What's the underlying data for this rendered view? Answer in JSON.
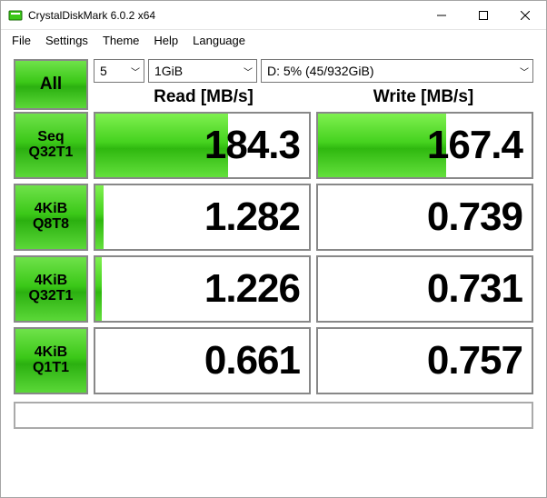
{
  "window": {
    "title": "CrystalDiskMark 6.0.2 x64"
  },
  "menu": {
    "file": "File",
    "settings": "Settings",
    "theme": "Theme",
    "help": "Help",
    "language": "Language"
  },
  "controls": {
    "all_label": "All",
    "count": "5",
    "size": "1GiB",
    "drive": "D: 5% (45/932GiB)"
  },
  "headers": {
    "read": "Read [MB/s]",
    "write": "Write [MB/s]"
  },
  "tests": [
    {
      "label1": "Seq",
      "label2": "Q32T1",
      "read": "184.3",
      "read_fill_pct": 62,
      "write": "167.4",
      "write_fill_pct": 60
    },
    {
      "label1": "4KiB",
      "label2": "Q8T8",
      "read": "1.282",
      "read_fill_pct": 4,
      "write": "0.739",
      "write_fill_pct": 0
    },
    {
      "label1": "4KiB",
      "label2": "Q32T1",
      "read": "1.226",
      "read_fill_pct": 3,
      "write": "0.731",
      "write_fill_pct": 0
    },
    {
      "label1": "4KiB",
      "label2": "Q1T1",
      "read": "0.661",
      "read_fill_pct": 0,
      "write": "0.757",
      "write_fill_pct": 0
    }
  ],
  "colors": {
    "green_grad_top": "#6fe24a",
    "green_grad_mid1": "#3bc818",
    "green_grad_mid2": "#2bb010",
    "green_grad_bot": "#5bd838",
    "border": "#888888",
    "background": "#ffffff"
  }
}
